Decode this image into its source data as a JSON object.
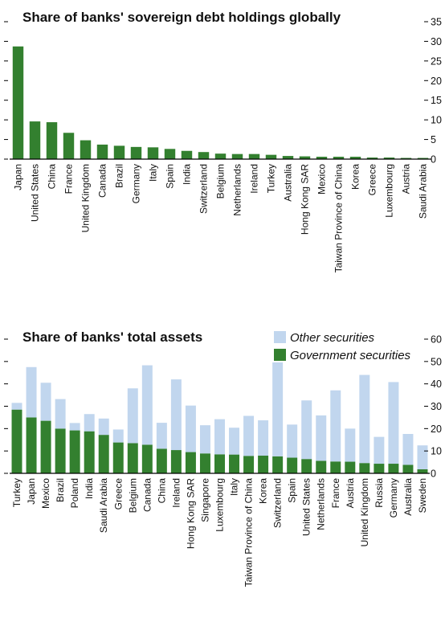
{
  "colors": {
    "green": "#33802f",
    "light_blue": "#c1d6ee",
    "axis": "#000000"
  },
  "chart_data": [
    {
      "type": "bar",
      "title": "Share of banks' sovereign debt holdings globally",
      "ylim": [
        0,
        35
      ],
      "yticks": [
        0,
        5,
        10,
        15,
        20,
        25,
        30,
        35
      ],
      "grid": false,
      "categories": [
        "Japan",
        "United States",
        "China",
        "France",
        "United Kingdom",
        "Canada",
        "Brazil",
        "Germany",
        "Italy",
        "Spain",
        "India",
        "Switzerland",
        "Belgium",
        "Netherlands",
        "Ireland",
        "Turkey",
        "Australia",
        "Hong Kong SAR",
        "Mexico",
        "Taiwan Province of China",
        "Korea",
        "Greece",
        "Luxembourg",
        "Austria",
        "Saudi Arabia"
      ],
      "values": [
        28.7,
        9.6,
        9.4,
        6.7,
        4.8,
        3.7,
        3.4,
        3.1,
        3.0,
        2.6,
        2.1,
        1.8,
        1.4,
        1.3,
        1.3,
        1.1,
        0.8,
        0.7,
        0.6,
        0.6,
        0.6,
        0.4,
        0.4,
        0.3,
        0.3
      ]
    },
    {
      "type": "bar",
      "stacked": true,
      "title": "Share of banks' total assets",
      "ylim": [
        0,
        60
      ],
      "yticks": [
        0,
        10,
        20,
        30,
        40,
        50,
        60
      ],
      "grid": false,
      "legend_position": "top-right",
      "categories": [
        "Turkey",
        "Japan",
        "Mexico",
        "Brazil",
        "Poland",
        "India",
        "Saudi Arabia",
        "Greece",
        "Belgium",
        "Canada",
        "China",
        "Ireland",
        "Hong Kong SAR",
        "Singapore",
        "Luxembourg",
        "Italy",
        "Taiwan Province of China",
        "Korea",
        "Switzerland",
        "Spain",
        "United States",
        "Netherlands",
        "France",
        "Austria",
        "United Kingdom",
        "Russia",
        "Germany",
        "Australia",
        "Sweden"
      ],
      "series": [
        {
          "name": "Government securities",
          "values": [
            28.5,
            25.0,
            23.5,
            20.0,
            19.2,
            18.8,
            17.2,
            13.8,
            13.5,
            12.8,
            11.0,
            10.4,
            9.5,
            8.9,
            8.5,
            8.4,
            7.8,
            7.9,
            7.6,
            7.0,
            6.4,
            5.6,
            5.3,
            5.2,
            4.6,
            4.3,
            4.3,
            3.8,
            1.8
          ]
        },
        {
          "name": "Other securities",
          "values": [
            3.0,
            22.5,
            17.0,
            13.2,
            3.3,
            7.7,
            7.3,
            5.8,
            24.5,
            35.5,
            11.6,
            31.6,
            20.8,
            12.6,
            15.7,
            12.0,
            17.9,
            15.8,
            42.0,
            14.8,
            26.2,
            20.3,
            31.8,
            14.8,
            39.4,
            12.0,
            36.5,
            13.8,
            10.7
          ]
        }
      ]
    }
  ]
}
